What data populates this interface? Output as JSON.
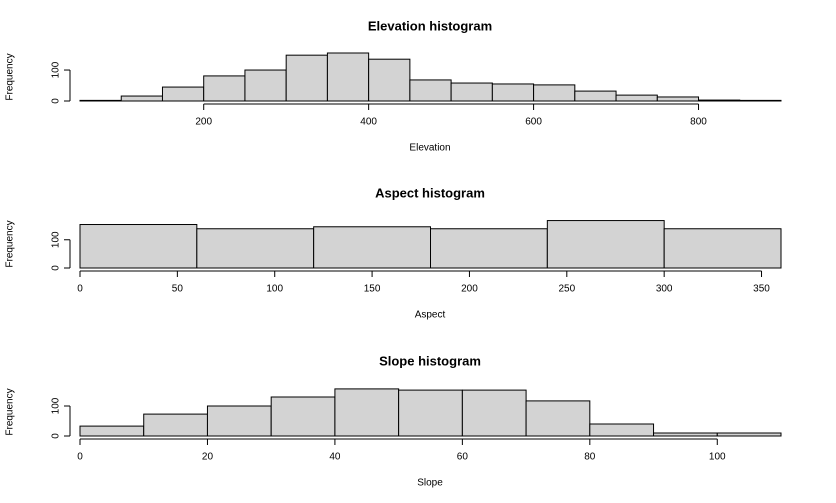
{
  "chart_data": [
    {
      "type": "histogram",
      "title": "Elevation histogram",
      "x_label": "Elevation",
      "y_label": "Frequency",
      "bins": [
        50,
        100,
        150,
        200,
        250,
        300,
        350,
        400,
        450,
        500,
        550,
        600,
        650,
        700,
        750,
        800,
        850,
        900
      ],
      "counts": [
        2,
        16,
        45,
        81,
        100,
        148,
        155,
        135,
        68,
        58,
        55,
        52,
        32,
        19,
        13,
        3,
        2
      ],
      "color": "#d3d3d3",
      "xlim": [
        50,
        900
      ],
      "xticks": [
        200,
        400,
        600,
        800
      ],
      "ylim": [
        0,
        155
      ],
      "yticks": [
        0,
        100
      ]
    },
    {
      "type": "histogram",
      "title": "Aspect histogram",
      "x_label": "Aspect",
      "y_label": "Frequency",
      "bins": [
        0,
        60,
        120,
        180,
        240,
        300,
        360
      ],
      "counts": [
        154,
        139,
        146,
        139,
        168,
        139
      ],
      "color": "#d3d3d3",
      "xlim": [
        0,
        360
      ],
      "xticks": [
        0,
        50,
        100,
        150,
        200,
        250,
        300,
        350
      ],
      "ylim": [
        0,
        170
      ],
      "yticks": [
        0,
        100
      ]
    },
    {
      "type": "histogram",
      "title": "Slope histogram",
      "x_label": "Slope",
      "y_label": "Frequency",
      "bins": [
        0,
        10,
        20,
        30,
        40,
        50,
        60,
        70,
        80,
        90,
        100,
        110
      ],
      "counts": [
        33,
        73,
        100,
        130,
        157,
        153,
        153,
        117,
        40,
        10,
        10
      ],
      "color": "#d3d3d3",
      "xlim": [
        0,
        110
      ],
      "xticks": [
        0,
        20,
        40,
        60,
        80,
        100
      ],
      "ylim": [
        0,
        160
      ],
      "yticks": [
        0,
        100
      ]
    }
  ]
}
